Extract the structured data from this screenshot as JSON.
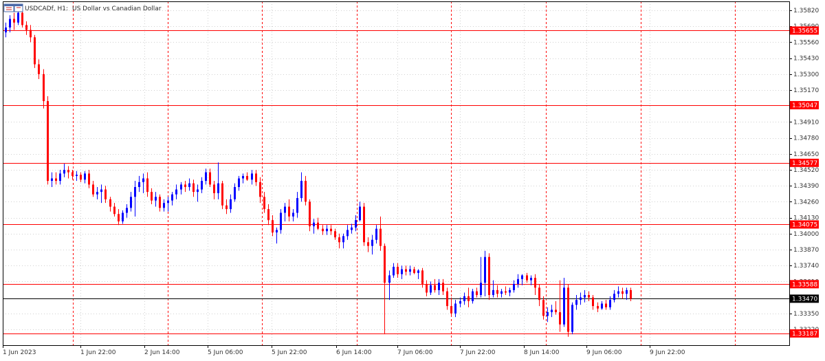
{
  "header": {
    "symbol_label": "USDCADf, H1:",
    "description": "US Dollar vs Canadian Dollar",
    "icon": "chart-window-icon"
  },
  "colors": {
    "bull": "#0000ff",
    "bear": "#ff0000",
    "level_line": "#ff0000",
    "current_line": "#000000",
    "grid": "#d0d0d0",
    "separator": "#ff0000",
    "axis_text": "#333333"
  },
  "chart_data": {
    "type": "candlestick",
    "title": "USDCADf, H1:  US Dollar vs Canadian Dollar",
    "timeframe": "H1",
    "ylim": [
      1.3311,
      1.3588
    ],
    "y_ticks": [
      1.3582,
      1.3569,
      1.3556,
      1.3543,
      1.353,
      1.3517,
      1.3491,
      1.3478,
      1.3465,
      1.3452,
      1.3439,
      1.3426,
      1.3413,
      1.34,
      1.3387,
      1.3374,
      1.3361,
      1.3335,
      1.3322
    ],
    "x_labels": [
      "1 Jun 2023",
      "1 Jun 22:00",
      "2 Jun 14:00",
      "5 Jun 06:00",
      "5 Jun 22:00",
      "6 Jun 14:00",
      "7 Jun 06:00",
      "7 Jun 22:00",
      "8 Jun 14:00",
      "9 Jun 06:00",
      "9 Jun 22:00"
    ],
    "levels": [
      {
        "price": 1.35655,
        "label": "1.35655"
      },
      {
        "price": 1.35047,
        "label": "1.35047"
      },
      {
        "price": 1.34577,
        "label": "1.34577"
      },
      {
        "price": 1.34075,
        "label": "1.34075"
      },
      {
        "price": 1.33588,
        "label": "1.33588"
      },
      {
        "price": 1.33187,
        "label": "1.33187"
      }
    ],
    "current": {
      "price": 1.3347,
      "label": "1.33470"
    },
    "candles": [
      {
        "o": 1.3564,
        "h": 1.3572,
        "l": 1.356,
        "c": 1.3568
      },
      {
        "o": 1.3568,
        "h": 1.3578,
        "l": 1.3564,
        "c": 1.3575
      },
      {
        "o": 1.3575,
        "h": 1.358,
        "l": 1.3566,
        "c": 1.3572
      },
      {
        "o": 1.3572,
        "h": 1.3585,
        "l": 1.357,
        "c": 1.358
      },
      {
        "o": 1.358,
        "h": 1.3583,
        "l": 1.3568,
        "c": 1.357
      },
      {
        "o": 1.357,
        "h": 1.3573,
        "l": 1.3562,
        "c": 1.3566
      },
      {
        "o": 1.3566,
        "h": 1.357,
        "l": 1.3556,
        "c": 1.356
      },
      {
        "o": 1.356,
        "h": 1.3562,
        "l": 1.3535,
        "c": 1.3538
      },
      {
        "o": 1.3538,
        "h": 1.3542,
        "l": 1.3526,
        "c": 1.353
      },
      {
        "o": 1.353,
        "h": 1.3534,
        "l": 1.3502,
        "c": 1.3508
      },
      {
        "o": 1.3508,
        "h": 1.3512,
        "l": 1.344,
        "c": 1.3443
      },
      {
        "o": 1.3443,
        "h": 1.345,
        "l": 1.3438,
        "c": 1.3445
      },
      {
        "o": 1.3445,
        "h": 1.345,
        "l": 1.344,
        "c": 1.3443
      },
      {
        "o": 1.3443,
        "h": 1.3452,
        "l": 1.344,
        "c": 1.3449
      },
      {
        "o": 1.3449,
        "h": 1.3457,
        "l": 1.3446,
        "c": 1.3452
      },
      {
        "o": 1.3452,
        "h": 1.3455,
        "l": 1.3445,
        "c": 1.345
      },
      {
        "o": 1.345,
        "h": 1.3452,
        "l": 1.3444,
        "c": 1.3447
      },
      {
        "o": 1.3447,
        "h": 1.3451,
        "l": 1.3443,
        "c": 1.3448
      },
      {
        "o": 1.3448,
        "h": 1.345,
        "l": 1.3442,
        "c": 1.3444
      },
      {
        "o": 1.3444,
        "h": 1.3451,
        "l": 1.3441,
        "c": 1.3449
      },
      {
        "o": 1.3449,
        "h": 1.3452,
        "l": 1.3437,
        "c": 1.344
      },
      {
        "o": 1.344,
        "h": 1.3443,
        "l": 1.343,
        "c": 1.3432
      },
      {
        "o": 1.3432,
        "h": 1.3438,
        "l": 1.3428,
        "c": 1.3434
      },
      {
        "o": 1.3434,
        "h": 1.344,
        "l": 1.3425,
        "c": 1.3436
      },
      {
        "o": 1.3436,
        "h": 1.3439,
        "l": 1.3425,
        "c": 1.3428
      },
      {
        "o": 1.3428,
        "h": 1.343,
        "l": 1.3418,
        "c": 1.3422
      },
      {
        "o": 1.3422,
        "h": 1.3425,
        "l": 1.3414,
        "c": 1.3416
      },
      {
        "o": 1.3416,
        "h": 1.342,
        "l": 1.3407,
        "c": 1.341
      },
      {
        "o": 1.341,
        "h": 1.3419,
        "l": 1.3408,
        "c": 1.3417
      },
      {
        "o": 1.3417,
        "h": 1.3424,
        "l": 1.3413,
        "c": 1.3421
      },
      {
        "o": 1.3421,
        "h": 1.3434,
        "l": 1.3418,
        "c": 1.343
      },
      {
        "o": 1.343,
        "h": 1.3443,
        "l": 1.3414,
        "c": 1.3438
      },
      {
        "o": 1.3438,
        "h": 1.3447,
        "l": 1.3434,
        "c": 1.3442
      },
      {
        "o": 1.3442,
        "h": 1.3449,
        "l": 1.3433,
        "c": 1.3445
      },
      {
        "o": 1.3445,
        "h": 1.345,
        "l": 1.343,
        "c": 1.3434
      },
      {
        "o": 1.3434,
        "h": 1.3437,
        "l": 1.3424,
        "c": 1.3427
      },
      {
        "o": 1.3427,
        "h": 1.3434,
        "l": 1.3422,
        "c": 1.343
      },
      {
        "o": 1.343,
        "h": 1.3432,
        "l": 1.3418,
        "c": 1.3421
      },
      {
        "o": 1.3421,
        "h": 1.3428,
        "l": 1.3418,
        "c": 1.3425
      },
      {
        "o": 1.3425,
        "h": 1.343,
        "l": 1.3418,
        "c": 1.3427
      },
      {
        "o": 1.3427,
        "h": 1.3434,
        "l": 1.3423,
        "c": 1.3432
      },
      {
        "o": 1.3432,
        "h": 1.344,
        "l": 1.3428,
        "c": 1.3436
      },
      {
        "o": 1.3436,
        "h": 1.3442,
        "l": 1.3432,
        "c": 1.344
      },
      {
        "o": 1.344,
        "h": 1.3443,
        "l": 1.3434,
        "c": 1.3438
      },
      {
        "o": 1.3438,
        "h": 1.3445,
        "l": 1.3435,
        "c": 1.3441
      },
      {
        "o": 1.3441,
        "h": 1.3444,
        "l": 1.343,
        "c": 1.3434
      },
      {
        "o": 1.3434,
        "h": 1.344,
        "l": 1.3426,
        "c": 1.3436
      },
      {
        "o": 1.3436,
        "h": 1.3446,
        "l": 1.3433,
        "c": 1.3443
      },
      {
        "o": 1.3443,
        "h": 1.3453,
        "l": 1.344,
        "c": 1.345
      },
      {
        "o": 1.345,
        "h": 1.3453,
        "l": 1.3438,
        "c": 1.344
      },
      {
        "o": 1.344,
        "h": 1.3443,
        "l": 1.3428,
        "c": 1.3433
      },
      {
        "o": 1.3433,
        "h": 1.3458,
        "l": 1.3428,
        "c": 1.3441
      },
      {
        "o": 1.3441,
        "h": 1.3443,
        "l": 1.342,
        "c": 1.3423
      },
      {
        "o": 1.3423,
        "h": 1.3428,
        "l": 1.3416,
        "c": 1.342
      },
      {
        "o": 1.342,
        "h": 1.3432,
        "l": 1.3417,
        "c": 1.3428
      },
      {
        "o": 1.3428,
        "h": 1.3441,
        "l": 1.3426,
        "c": 1.3438
      },
      {
        "o": 1.3438,
        "h": 1.3447,
        "l": 1.3435,
        "c": 1.3445
      },
      {
        "o": 1.3445,
        "h": 1.3449,
        "l": 1.3441,
        "c": 1.3447
      },
      {
        "o": 1.3447,
        "h": 1.345,
        "l": 1.3443,
        "c": 1.3444
      },
      {
        "o": 1.3444,
        "h": 1.3452,
        "l": 1.344,
        "c": 1.3449
      },
      {
        "o": 1.3449,
        "h": 1.3452,
        "l": 1.3439,
        "c": 1.3442
      },
      {
        "o": 1.3442,
        "h": 1.3446,
        "l": 1.3425,
        "c": 1.343
      },
      {
        "o": 1.343,
        "h": 1.3434,
        "l": 1.3417,
        "c": 1.342
      },
      {
        "o": 1.342,
        "h": 1.3424,
        "l": 1.3407,
        "c": 1.3411
      },
      {
        "o": 1.3411,
        "h": 1.3415,
        "l": 1.3398,
        "c": 1.3401
      },
      {
        "o": 1.3401,
        "h": 1.3405,
        "l": 1.3392,
        "c": 1.3403
      },
      {
        "o": 1.3403,
        "h": 1.342,
        "l": 1.34,
        "c": 1.3417
      },
      {
        "o": 1.3417,
        "h": 1.3425,
        "l": 1.341,
        "c": 1.3422
      },
      {
        "o": 1.3422,
        "h": 1.3428,
        "l": 1.341,
        "c": 1.3414
      },
      {
        "o": 1.3414,
        "h": 1.342,
        "l": 1.341,
        "c": 1.3417
      },
      {
        "o": 1.3417,
        "h": 1.3434,
        "l": 1.3413,
        "c": 1.3429
      },
      {
        "o": 1.3429,
        "h": 1.345,
        "l": 1.3426,
        "c": 1.3443
      },
      {
        "o": 1.3443,
        "h": 1.3447,
        "l": 1.3423,
        "c": 1.3426
      },
      {
        "o": 1.3426,
        "h": 1.3428,
        "l": 1.3402,
        "c": 1.3406
      },
      {
        "o": 1.3406,
        "h": 1.3412,
        "l": 1.34,
        "c": 1.3409
      },
      {
        "o": 1.3409,
        "h": 1.3413,
        "l": 1.3403,
        "c": 1.3404
      },
      {
        "o": 1.3404,
        "h": 1.3407,
        "l": 1.3399,
        "c": 1.3402
      },
      {
        "o": 1.3402,
        "h": 1.3407,
        "l": 1.3399,
        "c": 1.3404
      },
      {
        "o": 1.3404,
        "h": 1.3407,
        "l": 1.3399,
        "c": 1.3402
      },
      {
        "o": 1.3402,
        "h": 1.3404,
        "l": 1.3395,
        "c": 1.3397
      },
      {
        "o": 1.3397,
        "h": 1.34,
        "l": 1.3388,
        "c": 1.3393
      },
      {
        "o": 1.3393,
        "h": 1.34,
        "l": 1.3388,
        "c": 1.3398
      },
      {
        "o": 1.3398,
        "h": 1.3407,
        "l": 1.3395,
        "c": 1.3403
      },
      {
        "o": 1.3403,
        "h": 1.3408,
        "l": 1.34,
        "c": 1.3405
      },
      {
        "o": 1.3405,
        "h": 1.3415,
        "l": 1.3402,
        "c": 1.3411
      },
      {
        "o": 1.3411,
        "h": 1.3426,
        "l": 1.341,
        "c": 1.3422
      },
      {
        "o": 1.3422,
        "h": 1.3425,
        "l": 1.339,
        "c": 1.3393
      },
      {
        "o": 1.3393,
        "h": 1.3397,
        "l": 1.3385,
        "c": 1.339
      },
      {
        "o": 1.339,
        "h": 1.3399,
        "l": 1.3383,
        "c": 1.3395
      },
      {
        "o": 1.3395,
        "h": 1.3407,
        "l": 1.3392,
        "c": 1.3404
      },
      {
        "o": 1.3404,
        "h": 1.3414,
        "l": 1.3386,
        "c": 1.339
      },
      {
        "o": 1.339,
        "h": 1.3392,
        "l": 1.3318,
        "c": 1.336
      },
      {
        "o": 1.336,
        "h": 1.337,
        "l": 1.3346,
        "c": 1.3366
      },
      {
        "o": 1.3366,
        "h": 1.3376,
        "l": 1.3364,
        "c": 1.3373
      },
      {
        "o": 1.3373,
        "h": 1.3376,
        "l": 1.3364,
        "c": 1.3367
      },
      {
        "o": 1.3367,
        "h": 1.3374,
        "l": 1.3363,
        "c": 1.3371
      },
      {
        "o": 1.3371,
        "h": 1.3374,
        "l": 1.3366,
        "c": 1.3369
      },
      {
        "o": 1.3369,
        "h": 1.3374,
        "l": 1.3366,
        "c": 1.3371
      },
      {
        "o": 1.3371,
        "h": 1.3373,
        "l": 1.3367,
        "c": 1.3368
      },
      {
        "o": 1.3368,
        "h": 1.3371,
        "l": 1.3363,
        "c": 1.337
      },
      {
        "o": 1.337,
        "h": 1.3372,
        "l": 1.3356,
        "c": 1.3359
      },
      {
        "o": 1.3359,
        "h": 1.3362,
        "l": 1.3349,
        "c": 1.3352
      },
      {
        "o": 1.3352,
        "h": 1.3361,
        "l": 1.335,
        "c": 1.3358
      },
      {
        "o": 1.3358,
        "h": 1.3363,
        "l": 1.3352,
        "c": 1.3354
      },
      {
        "o": 1.3354,
        "h": 1.3363,
        "l": 1.335,
        "c": 1.336
      },
      {
        "o": 1.336,
        "h": 1.3363,
        "l": 1.335,
        "c": 1.3353
      },
      {
        "o": 1.3353,
        "h": 1.3356,
        "l": 1.3338,
        "c": 1.3341
      },
      {
        "o": 1.3341,
        "h": 1.3348,
        "l": 1.3333,
        "c": 1.3335
      },
      {
        "o": 1.3335,
        "h": 1.3346,
        "l": 1.3332,
        "c": 1.3343
      },
      {
        "o": 1.3343,
        "h": 1.3348,
        "l": 1.334,
        "c": 1.3345
      },
      {
        "o": 1.3345,
        "h": 1.3352,
        "l": 1.3342,
        "c": 1.3349
      },
      {
        "o": 1.3349,
        "h": 1.3356,
        "l": 1.334,
        "c": 1.3345
      },
      {
        "o": 1.3345,
        "h": 1.3355,
        "l": 1.3343,
        "c": 1.3353
      },
      {
        "o": 1.3353,
        "h": 1.3356,
        "l": 1.3348,
        "c": 1.335
      },
      {
        "o": 1.335,
        "h": 1.3381,
        "l": 1.3348,
        "c": 1.336
      },
      {
        "o": 1.336,
        "h": 1.3386,
        "l": 1.3349,
        "c": 1.3381
      },
      {
        "o": 1.3381,
        "h": 1.3384,
        "l": 1.3346,
        "c": 1.335
      },
      {
        "o": 1.335,
        "h": 1.3362,
        "l": 1.3348,
        "c": 1.3354
      },
      {
        "o": 1.3354,
        "h": 1.3358,
        "l": 1.3348,
        "c": 1.3351
      },
      {
        "o": 1.3351,
        "h": 1.3355,
        "l": 1.3348,
        "c": 1.3353
      },
      {
        "o": 1.3353,
        "h": 1.3357,
        "l": 1.335,
        "c": 1.3352
      },
      {
        "o": 1.3352,
        "h": 1.3356,
        "l": 1.3349,
        "c": 1.3354
      },
      {
        "o": 1.3354,
        "h": 1.3362,
        "l": 1.3352,
        "c": 1.3359
      },
      {
        "o": 1.3359,
        "h": 1.3367,
        "l": 1.3356,
        "c": 1.3363
      },
      {
        "o": 1.3363,
        "h": 1.3367,
        "l": 1.3358,
        "c": 1.3366
      },
      {
        "o": 1.3366,
        "h": 1.3368,
        "l": 1.336,
        "c": 1.3362
      },
      {
        "o": 1.3362,
        "h": 1.3366,
        "l": 1.3358,
        "c": 1.3364
      },
      {
        "o": 1.3364,
        "h": 1.3367,
        "l": 1.335,
        "c": 1.3356
      },
      {
        "o": 1.3356,
        "h": 1.3359,
        "l": 1.3341,
        "c": 1.3346
      },
      {
        "o": 1.3346,
        "h": 1.3349,
        "l": 1.333,
        "c": 1.3333
      },
      {
        "o": 1.3333,
        "h": 1.334,
        "l": 1.3328,
        "c": 1.3336
      },
      {
        "o": 1.3336,
        "h": 1.3342,
        "l": 1.3332,
        "c": 1.3338
      },
      {
        "o": 1.3338,
        "h": 1.3345,
        "l": 1.3334,
        "c": 1.3336
      },
      {
        "o": 1.3336,
        "h": 1.3362,
        "l": 1.332,
        "c": 1.3326
      },
      {
        "o": 1.3326,
        "h": 1.3364,
        "l": 1.3324,
        "c": 1.3356
      },
      {
        "o": 1.3356,
        "h": 1.3359,
        "l": 1.3316,
        "c": 1.332
      },
      {
        "o": 1.332,
        "h": 1.3344,
        "l": 1.3318,
        "c": 1.3342
      },
      {
        "o": 1.3342,
        "h": 1.335,
        "l": 1.3338,
        "c": 1.3346
      },
      {
        "o": 1.3346,
        "h": 1.3352,
        "l": 1.3342,
        "c": 1.3348
      },
      {
        "o": 1.3348,
        "h": 1.3354,
        "l": 1.3344,
        "c": 1.335
      },
      {
        "o": 1.335,
        "h": 1.3353,
        "l": 1.3345,
        "c": 1.3348
      },
      {
        "o": 1.3348,
        "h": 1.335,
        "l": 1.3338,
        "c": 1.3341
      },
      {
        "o": 1.3341,
        "h": 1.3344,
        "l": 1.3336,
        "c": 1.3339
      },
      {
        "o": 1.3339,
        "h": 1.3345,
        "l": 1.3338,
        "c": 1.3343
      },
      {
        "o": 1.3343,
        "h": 1.3346,
        "l": 1.3338,
        "c": 1.334
      },
      {
        "o": 1.334,
        "h": 1.3349,
        "l": 1.3338,
        "c": 1.3346
      },
      {
        "o": 1.3346,
        "h": 1.3354,
        "l": 1.3344,
        "c": 1.3351
      },
      {
        "o": 1.3351,
        "h": 1.3357,
        "l": 1.3348,
        "c": 1.3353
      },
      {
        "o": 1.3353,
        "h": 1.3356,
        "l": 1.3347,
        "c": 1.3351
      },
      {
        "o": 1.3351,
        "h": 1.3356,
        "l": 1.3346,
        "c": 1.3354
      },
      {
        "o": 1.3354,
        "h": 1.3356,
        "l": 1.3345,
        "c": 1.3347
      }
    ]
  }
}
